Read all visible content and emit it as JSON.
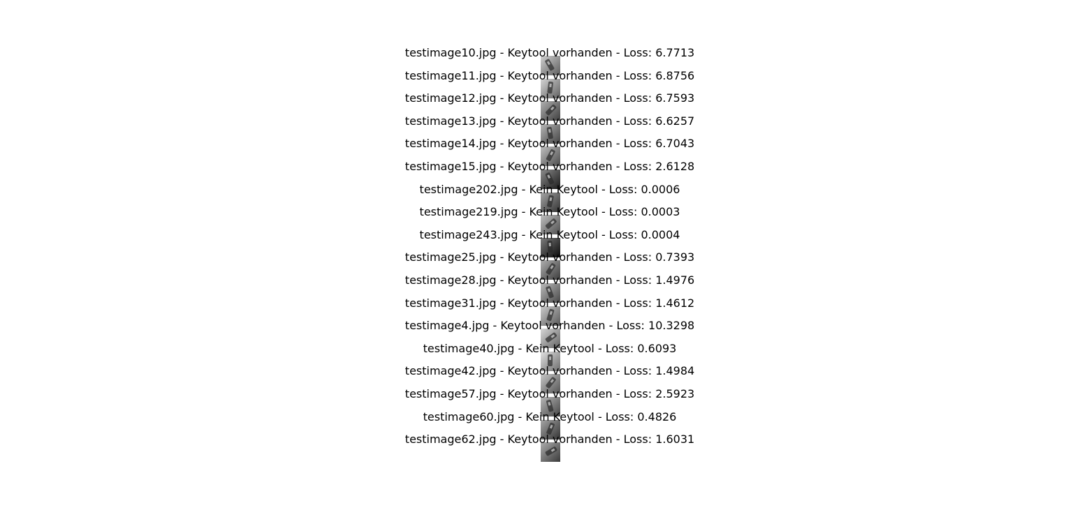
{
  "results": [
    {
      "caption": "testimage10.jpg - Keytool vorhanden - Loss: 6.7713",
      "filename": "testimage10.jpg",
      "prediction": "Keytool vorhanden",
      "loss": 6.7713,
      "thumbnail_tone": "#a9a9a9"
    },
    {
      "caption": "testimage11.jpg - Keytool vorhanden - Loss: 6.8756",
      "filename": "testimage11.jpg",
      "prediction": "Keytool vorhanden",
      "loss": 6.8756,
      "thumbnail_tone": "#b0b0b0"
    },
    {
      "caption": "testimage12.jpg - Keytool vorhanden - Loss: 6.7593",
      "filename": "testimage12.jpg",
      "prediction": "Keytool vorhanden",
      "loss": 6.7593,
      "thumbnail_tone": "#6f6f6f"
    },
    {
      "caption": "testimage13.jpg - Keytool vorhanden - Loss: 6.6257",
      "filename": "testimage13.jpg",
      "prediction": "Keytool vorhanden",
      "loss": 6.6257,
      "thumbnail_tone": "#7a7a7a"
    },
    {
      "caption": "testimage14.jpg - Keytool vorhanden - Loss: 6.7043",
      "filename": "testimage14.jpg",
      "prediction": "Keytool vorhanden",
      "loss": 6.7043,
      "thumbnail_tone": "#8a8a8a"
    },
    {
      "caption": "testimage15.jpg - Keytool vorhanden - Loss: 2.6128",
      "filename": "testimage15.jpg",
      "prediction": "Keytool vorhanden",
      "loss": 2.6128,
      "thumbnail_tone": "#2e2e2e"
    },
    {
      "caption": "testimage202.jpg - Kein Keytool - Loss: 0.0006",
      "filename": "testimage202.jpg",
      "prediction": "Kein Keytool",
      "loss": 0.0006,
      "thumbnail_tone": "#5a5a5a"
    },
    {
      "caption": "testimage219.jpg - Kein Keytool - Loss: 0.0003",
      "filename": "testimage219.jpg",
      "prediction": "Kein Keytool",
      "loss": 0.0003,
      "thumbnail_tone": "#8c8c8c"
    },
    {
      "caption": "testimage243.jpg - Kein Keytool - Loss: 0.0004",
      "filename": "testimage243.jpg",
      "prediction": "Kein Keytool",
      "loss": 0.0004,
      "thumbnail_tone": "#111111"
    },
    {
      "caption": "testimage25.jpg - Keytool vorhanden - Loss: 0.7393",
      "filename": "testimage25.jpg",
      "prediction": "Keytool vorhanden",
      "loss": 0.7393,
      "thumbnail_tone": "#6c6c6c"
    },
    {
      "caption": "testimage28.jpg - Keytool vorhanden - Loss: 1.4976",
      "filename": "testimage28.jpg",
      "prediction": "Keytool vorhanden",
      "loss": 1.4976,
      "thumbnail_tone": "#838383"
    },
    {
      "caption": "testimage31.jpg - Keytool vorhanden - Loss: 1.4612",
      "filename": "testimage31.jpg",
      "prediction": "Keytool vorhanden",
      "loss": 1.4612,
      "thumbnail_tone": "#a0a0a0"
    },
    {
      "caption": "testimage4.jpg - Keytool vorhanden - Loss: 10.3298",
      "filename": "testimage4.jpg",
      "prediction": "Keytool vorhanden",
      "loss": 10.3298,
      "thumbnail_tone": "#b5b5b5"
    },
    {
      "caption": "testimage40.jpg - Kein Keytool - Loss: 0.6093",
      "filename": "testimage40.jpg",
      "prediction": "Kein Keytool",
      "loss": 0.6093,
      "thumbnail_tone": "#c8c8c8"
    },
    {
      "caption": "testimage42.jpg - Keytool vorhanden - Loss: 1.4984",
      "filename": "testimage42.jpg",
      "prediction": "Keytool vorhanden",
      "loss": 1.4984,
      "thumbnail_tone": "#989898"
    },
    {
      "caption": "testimage57.jpg - Keytool vorhanden - Loss: 2.5923",
      "filename": "testimage57.jpg",
      "prediction": "Keytool vorhanden",
      "loss": 2.5923,
      "thumbnail_tone": "#7d7d7d"
    },
    {
      "caption": "testimage60.jpg - Kein Keytool - Loss: 0.4826",
      "filename": "testimage60.jpg",
      "prediction": "Kein Keytool",
      "loss": 0.4826,
      "thumbnail_tone": "#5c5c5c"
    },
    {
      "caption": "testimage62.jpg - Keytool vorhanden - Loss: 1.6031",
      "filename": "testimage62.jpg",
      "prediction": "Keytool vorhanden",
      "loss": 1.6031,
      "thumbnail_tone": "#6a6a6a"
    }
  ]
}
